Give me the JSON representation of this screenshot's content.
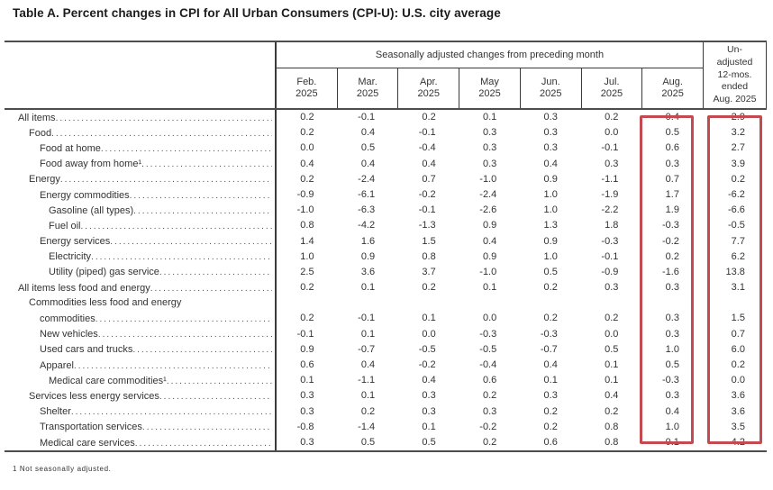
{
  "title": "Table A. Percent changes in CPI for All Urban Consumers (CPI-U): U.S. city average",
  "footnote": "1 Not seasonally adjusted.",
  "table": {
    "span_header": "Seasonally adjusted changes from preceding month",
    "month_columns": [
      "Feb. 2025",
      "Mar. 2025",
      "Apr. 2025",
      "May 2025",
      "Jun. 2025",
      "Jul. 2025",
      "Aug. 2025"
    ],
    "unadjusted_column_lines": [
      "Un-",
      "adjusted",
      "12-mos.",
      "ended",
      "Aug. 2025"
    ],
    "highlighted_columns": [
      "Aug. 2025",
      "Un-adjusted 12-mos. ended Aug. 2025"
    ],
    "highlight_color": "#c44a51",
    "rows": [
      {
        "label": "All items",
        "indent": 0,
        "values": [
          "0.2",
          "-0.1",
          "0.2",
          "0.1",
          "0.3",
          "0.2",
          "0.4",
          "2.9"
        ]
      },
      {
        "label": "Food",
        "indent": 1,
        "values": [
          "0.2",
          "0.4",
          "-0.1",
          "0.3",
          "0.3",
          "0.0",
          "0.5",
          "3.2"
        ]
      },
      {
        "label": "Food at home",
        "indent": 2,
        "values": [
          "0.0",
          "0.5",
          "-0.4",
          "0.3",
          "0.3",
          "-0.1",
          "0.6",
          "2.7"
        ]
      },
      {
        "label": "Food away from home¹",
        "indent": 2,
        "values": [
          "0.4",
          "0.4",
          "0.4",
          "0.3",
          "0.4",
          "0.3",
          "0.3",
          "3.9"
        ]
      },
      {
        "label": "Energy",
        "indent": 1,
        "values": [
          "0.2",
          "-2.4",
          "0.7",
          "-1.0",
          "0.9",
          "-1.1",
          "0.7",
          "0.2"
        ]
      },
      {
        "label": "Energy commodities",
        "indent": 2,
        "values": [
          "-0.9",
          "-6.1",
          "-0.2",
          "-2.4",
          "1.0",
          "-1.9",
          "1.7",
          "-6.2"
        ]
      },
      {
        "label": "Gasoline (all types)",
        "indent": 3,
        "values": [
          "-1.0",
          "-6.3",
          "-0.1",
          "-2.6",
          "1.0",
          "-2.2",
          "1.9",
          "-6.6"
        ]
      },
      {
        "label": "Fuel oil",
        "indent": 3,
        "values": [
          "0.8",
          "-4.2",
          "-1.3",
          "0.9",
          "1.3",
          "1.8",
          "-0.3",
          "-0.5"
        ]
      },
      {
        "label": "Energy services",
        "indent": 2,
        "values": [
          "1.4",
          "1.6",
          "1.5",
          "0.4",
          "0.9",
          "-0.3",
          "-0.2",
          "7.7"
        ]
      },
      {
        "label": "Electricity",
        "indent": 3,
        "values": [
          "1.0",
          "0.9",
          "0.8",
          "0.9",
          "1.0",
          "-0.1",
          "0.2",
          "6.2"
        ]
      },
      {
        "label": "Utility (piped) gas service",
        "indent": 3,
        "values": [
          "2.5",
          "3.6",
          "3.7",
          "-1.0",
          "0.5",
          "-0.9",
          "-1.6",
          "13.8"
        ]
      },
      {
        "label": "All items less food and energy",
        "indent": 0,
        "values": [
          "0.2",
          "0.1",
          "0.2",
          "0.1",
          "0.2",
          "0.3",
          "0.3",
          "3.1"
        ]
      },
      {
        "label": "Commodities less food and energy commodities",
        "wrap": [
          "Commodities less food and energy",
          "commodities"
        ],
        "indent": 1,
        "values": [
          "0.2",
          "-0.1",
          "0.1",
          "0.0",
          "0.2",
          "0.2",
          "0.3",
          "1.5"
        ]
      },
      {
        "label": "New vehicles",
        "indent": 2,
        "values": [
          "-0.1",
          "0.1",
          "0.0",
          "-0.3",
          "-0.3",
          "0.0",
          "0.3",
          "0.7"
        ]
      },
      {
        "label": "Used cars and trucks",
        "indent": 2,
        "values": [
          "0.9",
          "-0.7",
          "-0.5",
          "-0.5",
          "-0.7",
          "0.5",
          "1.0",
          "6.0"
        ]
      },
      {
        "label": "Apparel",
        "indent": 2,
        "values": [
          "0.6",
          "0.4",
          "-0.2",
          "-0.4",
          "0.4",
          "0.1",
          "0.5",
          "0.2"
        ]
      },
      {
        "label": "Medical care commodities¹",
        "indent": 3,
        "values": [
          "0.1",
          "-1.1",
          "0.4",
          "0.6",
          "0.1",
          "0.1",
          "-0.3",
          "0.0"
        ]
      },
      {
        "label": "Services less energy services",
        "indent": 1,
        "values": [
          "0.3",
          "0.1",
          "0.3",
          "0.2",
          "0.3",
          "0.4",
          "0.3",
          "3.6"
        ]
      },
      {
        "label": "Shelter",
        "indent": 2,
        "values": [
          "0.3",
          "0.2",
          "0.3",
          "0.3",
          "0.2",
          "0.2",
          "0.4",
          "3.6"
        ]
      },
      {
        "label": "Transportation services",
        "indent": 2,
        "values": [
          "-0.8",
          "-1.4",
          "0.1",
          "-0.2",
          "0.2",
          "0.8",
          "1.0",
          "3.5"
        ]
      },
      {
        "label": "Medical care services",
        "indent": 2,
        "values": [
          "0.3",
          "0.5",
          "0.5",
          "0.2",
          "0.6",
          "0.8",
          "-0.1",
          "4.2"
        ]
      }
    ]
  }
}
